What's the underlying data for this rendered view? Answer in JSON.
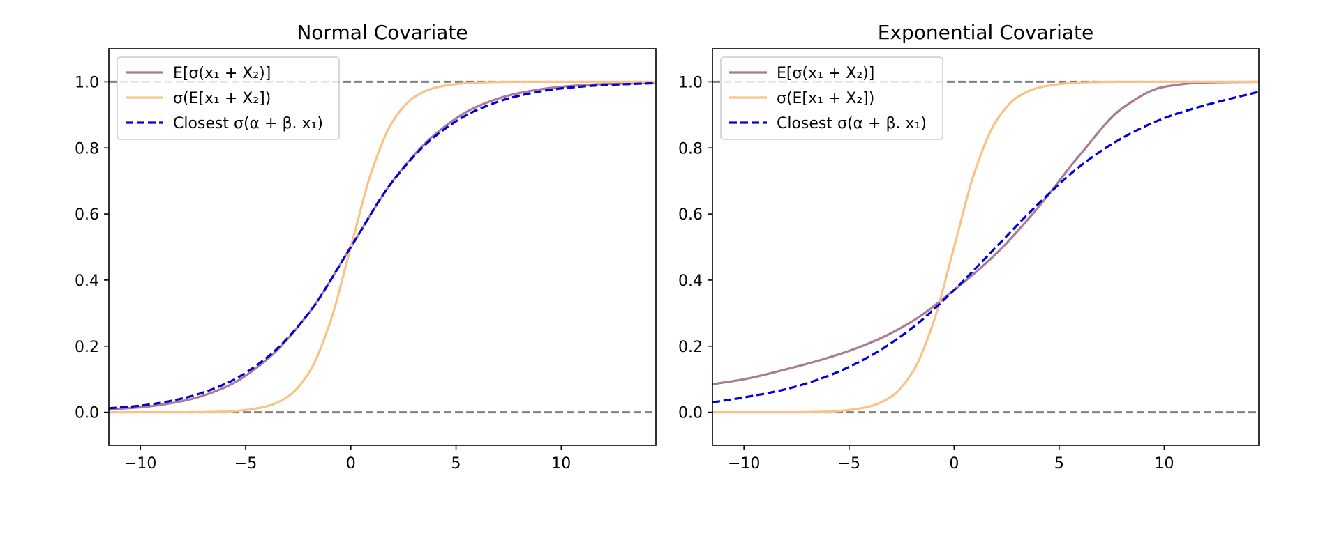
{
  "chart_data": [
    {
      "type": "line",
      "title": "Normal Covariate",
      "xlabel": "",
      "ylabel": "",
      "xlim": [
        -11.5,
        14.5
      ],
      "ylim": [
        -0.1,
        1.1
      ],
      "xticks": [
        -10,
        -5,
        0,
        5,
        10
      ],
      "xtick_labels": [
        "−10",
        "−5",
        "0",
        "5",
        "10"
      ],
      "yticks": [
        0.0,
        0.2,
        0.4,
        0.6,
        0.8,
        1.0
      ],
      "ytick_labels": [
        "0.0",
        "0.2",
        "0.4",
        "0.6",
        "0.8",
        "1.0"
      ],
      "grid": false,
      "legend_position": "top-left",
      "reference_lines": [
        {
          "y": 0.0,
          "color": "#808080",
          "style": "dashed"
        },
        {
          "y": 1.0,
          "color": "#808080",
          "style": "dashed"
        }
      ],
      "series": [
        {
          "name": "E[σ(x₁ + X₂)]",
          "color": "#a87b96",
          "style": "solid",
          "x": [
            -11.5,
            -10,
            -8,
            -6,
            -4,
            -2,
            0,
            2,
            4,
            6,
            8,
            10,
            12,
            14.5
          ],
          "y": [
            0.009,
            0.015,
            0.034,
            0.075,
            0.159,
            0.3,
            0.5,
            0.7,
            0.841,
            0.925,
            0.966,
            0.985,
            0.993,
            0.997
          ]
        },
        {
          "name": "σ(E[x₁ + X₂])",
          "color": "#f8c385",
          "style": "solid",
          "x": [
            -11.5,
            -8,
            -6,
            -5,
            -4,
            -3,
            -2,
            -1,
            0,
            1,
            2,
            3,
            4,
            5,
            6,
            8,
            14.5
          ],
          "y": [
            0.0,
            0.0,
            0.002,
            0.007,
            0.018,
            0.047,
            0.119,
            0.269,
            0.5,
            0.731,
            0.881,
            0.953,
            0.982,
            0.993,
            0.998,
            1.0,
            1.0
          ]
        },
        {
          "name": "Closest σ(α + β. x₁)",
          "color": "#0000dd",
          "style": "dashed",
          "x": [
            -11.5,
            -10,
            -8,
            -6,
            -4,
            -2,
            0,
            2,
            4,
            6,
            8,
            10,
            12,
            14.5
          ],
          "y": [
            0.012,
            0.02,
            0.042,
            0.085,
            0.165,
            0.3,
            0.5,
            0.7,
            0.835,
            0.915,
            0.958,
            0.98,
            0.99,
            0.996
          ]
        }
      ]
    },
    {
      "type": "line",
      "title": "Exponential Covariate",
      "xlabel": "",
      "ylabel": "",
      "xlim": [
        -11.5,
        14.5
      ],
      "ylim": [
        -0.1,
        1.1
      ],
      "xticks": [
        -10,
        -5,
        0,
        5,
        10
      ],
      "xtick_labels": [
        "−10",
        "−5",
        "0",
        "5",
        "10"
      ],
      "yticks": [
        0.0,
        0.2,
        0.4,
        0.6,
        0.8,
        1.0
      ],
      "ytick_labels": [
        "0.0",
        "0.2",
        "0.4",
        "0.6",
        "0.8",
        "1.0"
      ],
      "grid": false,
      "legend_position": "top-left",
      "reference_lines": [
        {
          "y": 0.0,
          "color": "#808080",
          "style": "dashed"
        },
        {
          "y": 1.0,
          "color": "#808080",
          "style": "dashed"
        }
      ],
      "series": [
        {
          "name": "E[σ(x₁ + X₂)]",
          "color": "#a87b96",
          "style": "solid",
          "x": [
            -11.5,
            -10,
            -8,
            -6,
            -4,
            -2,
            0,
            2,
            4,
            6,
            8,
            10,
            12,
            14.5
          ],
          "y": [
            0.085,
            0.1,
            0.13,
            0.165,
            0.21,
            0.275,
            0.37,
            0.48,
            0.62,
            0.78,
            0.92,
            0.985,
            0.998,
            1.0
          ]
        },
        {
          "name": "σ(E[x₁ + X₂])",
          "color": "#f8c385",
          "style": "solid",
          "x": [
            -11.5,
            -8,
            -6,
            -5,
            -4,
            -3,
            -2,
            -1,
            0,
            1,
            2,
            3,
            4,
            5,
            6,
            8,
            14.5
          ],
          "y": [
            0.0,
            0.0,
            0.002,
            0.007,
            0.018,
            0.047,
            0.119,
            0.269,
            0.5,
            0.731,
            0.881,
            0.953,
            0.982,
            0.993,
            0.998,
            1.0,
            1.0
          ]
        },
        {
          "name": "Closest σ(α + β. x₁)",
          "color": "#0000dd",
          "style": "dashed",
          "x": [
            -11.5,
            -10,
            -8,
            -6,
            -4,
            -2,
            0,
            2,
            4,
            6,
            8,
            10,
            12,
            14.5
          ],
          "y": [
            0.03,
            0.045,
            0.07,
            0.11,
            0.17,
            0.255,
            0.37,
            0.5,
            0.63,
            0.745,
            0.83,
            0.89,
            0.93,
            0.97
          ]
        }
      ]
    }
  ]
}
